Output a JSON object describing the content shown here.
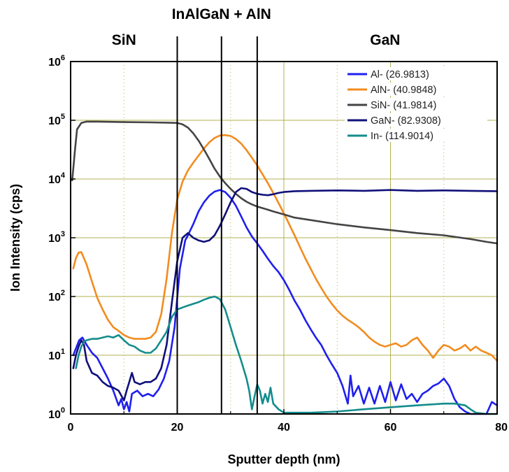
{
  "chart_data": {
    "type": "line",
    "title": "",
    "xlabel": "Sputter depth (nm)",
    "ylabel": "Ion Intensity (cps)",
    "xlim": [
      0,
      80
    ],
    "ylim": [
      1,
      1000000
    ],
    "yscale": "log",
    "grid": true,
    "legend_position": "top-right",
    "x_ticks": [
      0,
      20,
      40,
      60,
      80
    ],
    "x_tick_labels": [
      "0",
      "20",
      "40",
      "60",
      "80"
    ],
    "y_ticks": [
      1,
      10,
      100,
      1000,
      10000,
      100000,
      1000000
    ],
    "y_tick_bases": [
      "10",
      "10",
      "10",
      "10",
      "10",
      "10",
      "10"
    ],
    "y_tick_exps": [
      "0",
      "1",
      "2",
      "3",
      "4",
      "5",
      "6"
    ],
    "regions": [
      {
        "label": "SiN",
        "x": 10,
        "level": 1
      },
      {
        "label": "InAlGaN + AlN",
        "x": 28.3,
        "level": 0
      },
      {
        "label": "GaN",
        "x": 59,
        "level": 1
      }
    ],
    "vlines": [
      20,
      28.3,
      35
    ],
    "series": [
      {
        "name": "Al- (26.9813)",
        "color": "#1f1fef",
        "points": [
          [
            0.5,
            10
          ],
          [
            1,
            13
          ],
          [
            1.6,
            18
          ],
          [
            2.2,
            20
          ],
          [
            3,
            15
          ],
          [
            4,
            11
          ],
          [
            5,
            9
          ],
          [
            6,
            6
          ],
          [
            7,
            4
          ],
          [
            8,
            2.5
          ],
          [
            9,
            1.4
          ],
          [
            9.5,
            1.8
          ],
          [
            10,
            1.2
          ],
          [
            10.5,
            1.6
          ],
          [
            11,
            1.1
          ],
          [
            11.5,
            2.2
          ],
          [
            12.5,
            2.5
          ],
          [
            13.5,
            2
          ],
          [
            14.5,
            2.2
          ],
          [
            15.5,
            2
          ],
          [
            16.5,
            2.6
          ],
          [
            17.5,
            4
          ],
          [
            18.5,
            8
          ],
          [
            19.5,
            30
          ],
          [
            20.5,
            300
          ],
          [
            21.5,
            900
          ],
          [
            22,
            1100
          ],
          [
            23,
            1700
          ],
          [
            24,
            2800
          ],
          [
            25,
            4000
          ],
          [
            26,
            5200
          ],
          [
            27,
            6100
          ],
          [
            28,
            6500
          ],
          [
            29,
            6000
          ],
          [
            30,
            4800
          ],
          [
            31,
            3500
          ],
          [
            32,
            2300
          ],
          [
            33,
            1500
          ],
          [
            34,
            1050
          ],
          [
            35,
            800
          ],
          [
            36,
            600
          ],
          [
            37,
            440
          ],
          [
            38,
            330
          ],
          [
            39,
            260
          ],
          [
            40,
            190
          ],
          [
            41,
            130
          ],
          [
            42,
            85
          ],
          [
            43,
            60
          ],
          [
            44,
            40
          ],
          [
            45,
            28
          ],
          [
            46,
            20
          ],
          [
            47,
            15
          ],
          [
            48,
            10
          ],
          [
            49,
            7
          ],
          [
            50,
            5
          ],
          [
            51,
            3
          ],
          [
            52,
            1.5
          ],
          [
            52.5,
            4.5
          ],
          [
            53,
            2
          ],
          [
            54,
            3
          ],
          [
            55,
            1.5
          ],
          [
            56,
            2.8
          ],
          [
            57,
            1.5
          ],
          [
            58,
            3
          ],
          [
            59,
            1.6
          ],
          [
            60,
            3.5
          ],
          [
            61,
            1.7
          ],
          [
            62,
            3.2
          ],
          [
            63,
            1.8
          ],
          [
            64,
            2.2
          ],
          [
            65,
            1.6
          ],
          [
            66,
            2.2
          ],
          [
            67,
            2.5
          ],
          [
            68,
            3
          ],
          [
            69,
            3.3
          ],
          [
            70,
            4
          ],
          [
            71,
            3
          ],
          [
            72,
            1.8
          ],
          [
            73,
            1.3
          ],
          [
            74,
            1.1
          ],
          [
            75,
            1
          ],
          [
            76,
            1
          ],
          [
            77,
            1
          ],
          [
            78,
            1
          ],
          [
            79,
            1.6
          ],
          [
            80,
            1.4
          ]
        ]
      },
      {
        "name": "AlN- (40.9848)",
        "color": "#f28c1f",
        "points": [
          [
            0.5,
            300
          ],
          [
            1,
            450
          ],
          [
            1.5,
            560
          ],
          [
            2,
            570
          ],
          [
            3,
            350
          ],
          [
            4,
            180
          ],
          [
            5,
            95
          ],
          [
            6,
            60
          ],
          [
            7,
            40
          ],
          [
            8,
            30
          ],
          [
            9,
            26
          ],
          [
            10,
            22
          ],
          [
            11,
            20
          ],
          [
            12,
            19
          ],
          [
            13,
            19
          ],
          [
            14,
            19
          ],
          [
            15,
            20
          ],
          [
            16,
            25
          ],
          [
            17,
            50
          ],
          [
            18,
            200
          ],
          [
            19,
            1200
          ],
          [
            20,
            4500
          ],
          [
            21,
            9000
          ],
          [
            22,
            14000
          ],
          [
            23,
            19000
          ],
          [
            24,
            25000
          ],
          [
            25,
            33000
          ],
          [
            26,
            42000
          ],
          [
            27,
            50000
          ],
          [
            28,
            55000
          ],
          [
            29,
            56000
          ],
          [
            30,
            54000
          ],
          [
            31,
            48000
          ],
          [
            32,
            40000
          ],
          [
            33,
            31000
          ],
          [
            34,
            23000
          ],
          [
            35,
            17000
          ],
          [
            36,
            12000
          ],
          [
            37,
            8500
          ],
          [
            38,
            5800
          ],
          [
            39,
            3900
          ],
          [
            40,
            2600
          ],
          [
            41,
            1700
          ],
          [
            42,
            1100
          ],
          [
            43,
            700
          ],
          [
            44,
            450
          ],
          [
            45,
            300
          ],
          [
            46,
            200
          ],
          [
            47,
            140
          ],
          [
            48,
            100
          ],
          [
            49,
            75
          ],
          [
            50,
            58
          ],
          [
            51,
            47
          ],
          [
            52,
            40
          ],
          [
            53,
            35
          ],
          [
            54,
            30
          ],
          [
            55,
            25
          ],
          [
            56,
            20
          ],
          [
            57,
            17
          ],
          [
            58,
            15
          ],
          [
            59,
            14
          ],
          [
            60,
            15
          ],
          [
            61,
            16
          ],
          [
            62,
            14
          ],
          [
            63,
            15
          ],
          [
            64,
            18
          ],
          [
            65,
            20
          ],
          [
            66,
            15
          ],
          [
            67,
            12
          ],
          [
            68,
            9
          ],
          [
            69,
            12
          ],
          [
            70,
            15
          ],
          [
            71,
            14
          ],
          [
            72,
            12
          ],
          [
            73,
            13
          ],
          [
            74,
            15
          ],
          [
            75,
            12
          ],
          [
            76,
            14
          ],
          [
            77,
            12
          ],
          [
            78,
            11
          ],
          [
            79,
            10
          ],
          [
            80,
            8
          ]
        ]
      },
      {
        "name": "SiN- (41.9814)",
        "color": "#444444",
        "points": [
          [
            0.3,
            9500
          ],
          [
            0.8,
            30000
          ],
          [
            1.2,
            70000
          ],
          [
            2,
            90000
          ],
          [
            3,
            95000
          ],
          [
            5,
            95000
          ],
          [
            10,
            93000
          ],
          [
            15,
            92000
          ],
          [
            18,
            91000
          ],
          [
            20,
            90000
          ],
          [
            21,
            85000
          ],
          [
            22,
            75000
          ],
          [
            23,
            60000
          ],
          [
            24,
            45000
          ],
          [
            25,
            32000
          ],
          [
            26,
            22000
          ],
          [
            27,
            15000
          ],
          [
            28,
            11000
          ],
          [
            29,
            8500
          ],
          [
            30,
            6800
          ],
          [
            31,
            5600
          ],
          [
            32,
            4700
          ],
          [
            33,
            4100
          ],
          [
            34,
            3700
          ],
          [
            35,
            3400
          ],
          [
            36,
            3200
          ],
          [
            37,
            3000
          ],
          [
            38,
            2800
          ],
          [
            40,
            2500
          ],
          [
            42,
            2200
          ],
          [
            45,
            2000
          ],
          [
            50,
            1700
          ],
          [
            55,
            1500
          ],
          [
            60,
            1350
          ],
          [
            65,
            1200
          ],
          [
            70,
            1100
          ],
          [
            75,
            950
          ],
          [
            78,
            850
          ],
          [
            80,
            800
          ]
        ]
      },
      {
        "name": "GaN- (82.9308)",
        "color": "#10107a",
        "points": [
          [
            0.5,
            6
          ],
          [
            1,
            10
          ],
          [
            1.5,
            14
          ],
          [
            2,
            18
          ],
          [
            2.5,
            15
          ],
          [
            3,
            8
          ],
          [
            4,
            5
          ],
          [
            5,
            4.5
          ],
          [
            6,
            3.5
          ],
          [
            7,
            3
          ],
          [
            8,
            2.8
          ],
          [
            9,
            2.5
          ],
          [
            10,
            1.7
          ],
          [
            10.5,
            2.5
          ],
          [
            11,
            3.5
          ],
          [
            11.5,
            5
          ],
          [
            12,
            3.5
          ],
          [
            13,
            3.2
          ],
          [
            14,
            3.5
          ],
          [
            15,
            3.5
          ],
          [
            16,
            4
          ],
          [
            17,
            6
          ],
          [
            18,
            15
          ],
          [
            19,
            80
          ],
          [
            20,
            400
          ],
          [
            21,
            1000
          ],
          [
            22,
            1200
          ],
          [
            23,
            1000
          ],
          [
            24,
            900
          ],
          [
            25,
            850
          ],
          [
            26,
            900
          ],
          [
            27,
            1100
          ],
          [
            28,
            1600
          ],
          [
            29,
            2500
          ],
          [
            30,
            4000
          ],
          [
            31,
            6000
          ],
          [
            32,
            7000
          ],
          [
            33,
            6800
          ],
          [
            34,
            6000
          ],
          [
            35,
            5600
          ],
          [
            36,
            5400
          ],
          [
            37,
            5300
          ],
          [
            38,
            5500
          ],
          [
            39,
            5800
          ],
          [
            40,
            6000
          ],
          [
            42,
            6200
          ],
          [
            45,
            6300
          ],
          [
            50,
            6400
          ],
          [
            55,
            6300
          ],
          [
            60,
            6500
          ],
          [
            65,
            6300
          ],
          [
            70,
            6400
          ],
          [
            75,
            6300
          ],
          [
            80,
            6200
          ]
        ]
      },
      {
        "name": "In- (114.9014)",
        "color": "#148c8c",
        "points": [
          [
            1,
            6
          ],
          [
            1.5,
            10
          ],
          [
            2,
            14
          ],
          [
            2.5,
            17
          ],
          [
            3,
            18
          ],
          [
            4,
            19
          ],
          [
            5,
            19
          ],
          [
            6,
            20
          ],
          [
            7,
            21
          ],
          [
            8,
            20
          ],
          [
            9,
            22
          ],
          [
            10,
            18
          ],
          [
            11,
            15
          ],
          [
            12,
            14
          ],
          [
            13,
            12
          ],
          [
            14,
            11
          ],
          [
            15,
            11
          ],
          [
            16,
            13
          ],
          [
            17,
            18
          ],
          [
            18,
            25
          ],
          [
            19,
            45
          ],
          [
            20,
            60
          ],
          [
            21,
            65
          ],
          [
            22,
            70
          ],
          [
            23,
            75
          ],
          [
            24,
            80
          ],
          [
            25,
            88
          ],
          [
            26,
            95
          ],
          [
            27,
            100
          ],
          [
            28,
            90
          ],
          [
            29,
            60
          ],
          [
            30,
            30
          ],
          [
            31,
            15
          ],
          [
            32,
            8
          ],
          [
            33,
            4
          ],
          [
            33.5,
            2.5
          ],
          [
            34,
            1.2
          ],
          [
            34.5,
            2
          ],
          [
            35,
            3.2
          ],
          [
            35.5,
            2.5
          ],
          [
            36,
            1.5
          ],
          [
            36.5,
            2.2
          ],
          [
            37,
            1.6
          ],
          [
            37.5,
            2.8
          ],
          [
            38,
            1.5
          ],
          [
            39,
            1.2
          ],
          [
            40,
            1.05
          ],
          [
            45,
            1.05
          ],
          [
            50,
            1.1
          ],
          [
            55,
            1.2
          ],
          [
            60,
            1.3
          ],
          [
            65,
            1.4
          ],
          [
            70,
            1.5
          ],
          [
            72,
            1.5
          ],
          [
            74,
            1.4
          ],
          [
            75,
            1.2
          ],
          [
            76,
            1.05
          ],
          [
            78,
            1
          ],
          [
            80,
            1
          ]
        ]
      }
    ]
  }
}
